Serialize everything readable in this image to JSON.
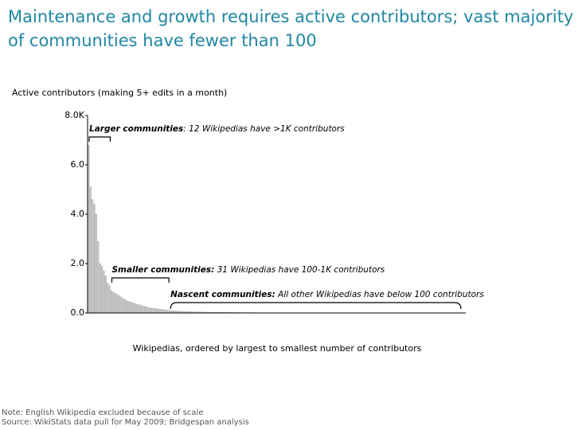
{
  "chart_data": {
    "type": "bar",
    "title": "Maintenance and growth requires active contributors; vast majority of communities have fewer than 100",
    "y_axis_label": "Active contributors (making 5+ edits in a month)",
    "x_axis_label": "Wikipedias, ordered by largest to smallest number of contributors",
    "color": "#c8c8c8",
    "ylim": [
      0,
      8
    ],
    "yticks": [
      {
        "value": 0,
        "label": "0.0"
      },
      {
        "value": 2,
        "label": "2.0"
      },
      {
        "value": 4,
        "label": "4.0"
      },
      {
        "value": 6,
        "label": "6.0"
      },
      {
        "value": 8,
        "label": "8.0K"
      }
    ],
    "values": [
      6.8,
      5.1,
      4.6,
      4.4,
      4.0,
      2.9,
      2.0,
      1.9,
      1.7,
      1.5,
      1.2,
      1.1,
      0.9,
      0.85,
      0.8,
      0.75,
      0.7,
      0.65,
      0.6,
      0.55,
      0.5,
      0.48,
      0.45,
      0.42,
      0.4,
      0.37,
      0.35,
      0.32,
      0.3,
      0.28,
      0.26,
      0.24,
      0.22,
      0.2,
      0.19,
      0.18,
      0.17,
      0.16,
      0.15,
      0.14,
      0.13,
      0.12,
      0.11,
      0.095,
      0.09,
      0.085,
      0.08,
      0.076,
      0.072,
      0.068,
      0.064,
      0.06,
      0.057,
      0.054,
      0.051,
      0.048,
      0.045,
      0.043,
      0.041,
      0.039,
      0.037,
      0.035,
      0.033,
      0.031,
      0.03,
      0.029,
      0.028,
      0.027,
      0.026,
      0.025,
      0.024,
      0.023,
      0.022,
      0.021,
      0.02,
      0.019,
      0.019,
      0.018,
      0.018,
      0.017,
      0.017,
      0.016,
      0.016,
      0.015,
      0.015,
      0.014,
      0.014,
      0.013,
      0.013,
      0.012,
      0.012,
      0.011,
      0.011,
      0.01,
      0.01,
      0.009,
      0.009,
      0.009,
      0.009,
      0.009,
      0.009,
      0.009,
      0.009,
      0.008,
      0.008,
      0.008,
      0.008,
      0.008,
      0.008,
      0.008,
      0.008,
      0.007,
      0.007,
      0.007,
      0.007,
      0.007,
      0.007,
      0.007,
      0.007,
      0.006,
      0.006,
      0.006,
      0.006,
      0.006,
      0.006,
      0.006,
      0.006,
      0.006,
      0.006,
      0.005,
      0.005,
      0.005,
      0.005,
      0.005,
      0.005,
      0.005,
      0.005,
      0.005,
      0.005,
      0.004,
      0.004,
      0.004,
      0.004,
      0.004,
      0.004,
      0.004,
      0.004,
      0.004,
      0.004,
      0.004,
      0.004,
      0.003,
      0.003,
      0.003,
      0.003,
      0.003,
      0.003,
      0.003,
      0.003,
      0.003,
      0.003,
      0.003,
      0.003,
      0.003,
      0.003,
      0.002,
      0.002,
      0.002,
      0.002,
      0.002,
      0.002,
      0.002,
      0.002,
      0.002,
      0.002,
      0.002,
      0.002,
      0.002,
      0.002,
      0.002,
      0.002,
      0.001,
      0.001,
      0.001,
      0.001,
      0.001,
      0.001,
      0.001,
      0.001,
      0.001,
      0.001,
      0.001,
      0.001,
      0.001,
      0.001,
      0.001,
      0.001,
      0.001,
      0.001,
      0.001
    ],
    "annotations": [
      {
        "label": "Larger communities",
        "text": ": 12 Wikipedias have >1K contributors"
      },
      {
        "label": "Smaller communities:",
        "text": " 31 Wikipedias have 100-1K contributors"
      },
      {
        "label": "Nascent communities:",
        "text": " All other Wikipedias have below 100 contributors"
      }
    ],
    "notes": [
      "Note: English Wikipedia excluded because of scale",
      "Source: WikiStats data pull for May 2009; Bridgespan analysis"
    ]
  }
}
